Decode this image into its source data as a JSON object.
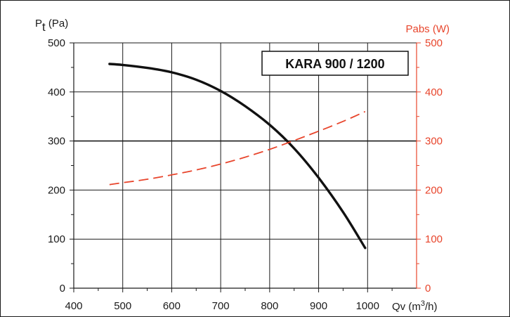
{
  "chart_data": {
    "type": "line",
    "annotation": "KARA 900 / 1200",
    "xlabel": {
      "main": "Qv (m",
      "sup": "3",
      "end": "/h)"
    },
    "ylabel_left": {
      "main": "P",
      "sub": "t",
      "end": " (Pa)"
    },
    "ylabel_right": "Pabs (W)",
    "xlim": [
      400,
      1100
    ],
    "ylim": [
      0,
      500
    ],
    "x_ticks": [
      400,
      500,
      600,
      700,
      800,
      900,
      1000
    ],
    "y_ticks": [
      0,
      100,
      200,
      300,
      400,
      500
    ],
    "grid": true,
    "series": [
      {
        "axis": "left",
        "color": "#111111",
        "style": "solid",
        "x": [
          473,
          500,
          550,
          600,
          650,
          700,
          750,
          800,
          850,
          900,
          950,
          995
        ],
        "y": [
          457,
          455,
          449,
          440,
          425,
          402,
          371,
          333,
          285,
          225,
          155,
          82
        ]
      },
      {
        "axis": "right",
        "color": "#e8452c",
        "style": "dashed",
        "x": [
          473,
          500,
          550,
          600,
          650,
          700,
          750,
          800,
          850,
          900,
          950,
          995
        ],
        "y": [
          211,
          215,
          222,
          231,
          241,
          253,
          267,
          283,
          301,
          320,
          340,
          360
        ]
      }
    ]
  }
}
